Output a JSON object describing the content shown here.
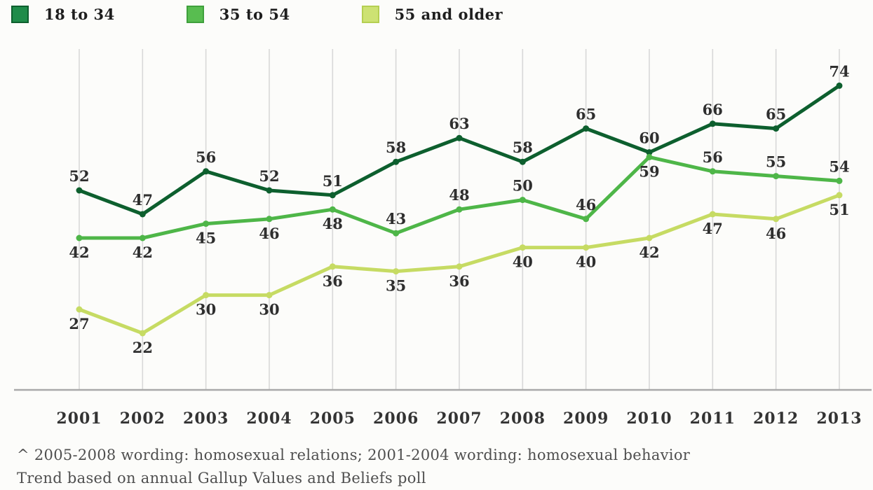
{
  "legend": {
    "items": [
      {
        "label": "18 to 34",
        "swatch_color": "#1f8c4a",
        "swatch_border": "#0d5f2e"
      },
      {
        "label": "35 to 54",
        "swatch_color": "#58bd50",
        "swatch_border": "#3fa03c"
      },
      {
        "label": "55 and older",
        "swatch_color": "#cde273",
        "swatch_border": "#b5cf52"
      }
    ]
  },
  "chart_data": {
    "type": "line",
    "title": "",
    "xlabel": "",
    "ylabel": "",
    "x": [
      2001,
      2002,
      2003,
      2004,
      2005,
      2006,
      2007,
      2008,
      2009,
      2010,
      2011,
      2012,
      2013
    ],
    "series": [
      {
        "name": "18 to 34",
        "color": "#0d5f2e",
        "values": [
          52,
          47,
          56,
          52,
          51,
          58,
          63,
          58,
          65,
          60,
          66,
          65,
          74
        ],
        "label_side": [
          "above",
          "above",
          "above",
          "above",
          "above",
          "above",
          "above",
          "above",
          "above",
          "above",
          "above",
          "above",
          "above"
        ]
      },
      {
        "name": "35 to 54",
        "color": "#4eb648",
        "values": [
          42,
          42,
          45,
          46,
          48,
          43,
          48,
          50,
          46,
          59,
          56,
          55,
          54
        ],
        "label_side": [
          "below",
          "below",
          "below",
          "below",
          "below",
          "above",
          "above",
          "above",
          "above",
          "below",
          "above",
          "above",
          "above"
        ]
      },
      {
        "name": "55 and older",
        "color": "#c6db63",
        "values": [
          27,
          22,
          30,
          30,
          36,
          35,
          36,
          40,
          40,
          42,
          47,
          46,
          51
        ],
        "label_side": [
          "below",
          "below",
          "below",
          "below",
          "below",
          "below",
          "below",
          "below",
          "below",
          "below",
          "below",
          "below",
          "below"
        ]
      }
    ],
    "ylim": [
      10,
      83
    ],
    "grid": "vertical-only",
    "legend_position": "top-left",
    "data_labels": true
  },
  "footnotes": {
    "line1": "^ 2005-2008 wording: homosexual relations; 2001-2004 wording: homosexual behavior",
    "line2": "Trend based on annual Gallup Values and Beliefs poll"
  }
}
